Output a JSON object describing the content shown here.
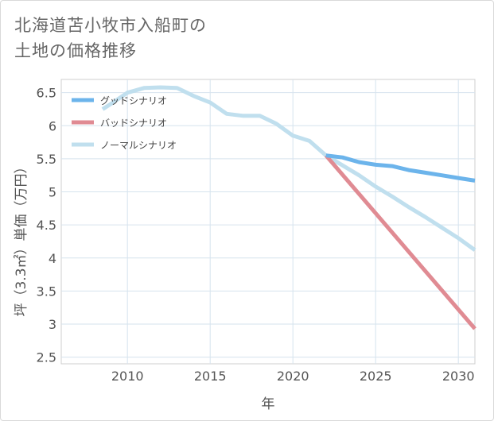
{
  "header": {
    "title_line1": "北海道苫小牧市入船町の",
    "title_line2": "土地の価格推移"
  },
  "chart_data": {
    "type": "line",
    "xlabel": "年",
    "ylabel": "坪（3.3㎡）単価（万円）",
    "xlim": [
      2006,
      2031
    ],
    "ylim": [
      2.4,
      6.7
    ],
    "xticks": [
      2010,
      2015,
      2020,
      2025,
      2030
    ],
    "yticks": [
      2.5,
      3,
      3.5,
      4,
      4.5,
      5,
      5.5,
      6,
      6.5
    ],
    "ytick_labels": [
      "2.5",
      "3",
      "3.5",
      "4",
      "4.5",
      "5",
      "5.5",
      "6",
      "6.5"
    ],
    "grid": true,
    "legend_position": "top-left",
    "series": [
      {
        "name": "グッドシナリオ",
        "color": "#6cb4eb",
        "x": [
          2022,
          2023,
          2024,
          2025,
          2026,
          2027,
          2028,
          2029,
          2030,
          2031
        ],
        "y": [
          5.55,
          5.52,
          5.45,
          5.41,
          5.39,
          5.33,
          5.29,
          5.25,
          5.21,
          5.17
        ]
      },
      {
        "name": "バッドシナリオ",
        "color": "#e08b93",
        "x": [
          2022,
          2031
        ],
        "y": [
          5.55,
          2.93
        ]
      },
      {
        "name": "ノーマルシナリオ",
        "color": "#c0dfee",
        "x": [
          2008.5,
          2009,
          2010,
          2011,
          2012,
          2013,
          2014,
          2015,
          2016,
          2017,
          2018,
          2019,
          2020,
          2021,
          2022,
          2023,
          2024,
          2025,
          2026,
          2027,
          2028,
          2029,
          2030,
          2031
        ],
        "y": [
          6.25,
          6.33,
          6.5,
          6.57,
          6.58,
          6.57,
          6.45,
          6.35,
          6.18,
          6.15,
          6.15,
          6.03,
          5.85,
          5.77,
          5.55,
          5.4,
          5.25,
          5.08,
          4.93,
          4.77,
          4.62,
          4.46,
          4.3,
          4.12
        ]
      }
    ]
  }
}
